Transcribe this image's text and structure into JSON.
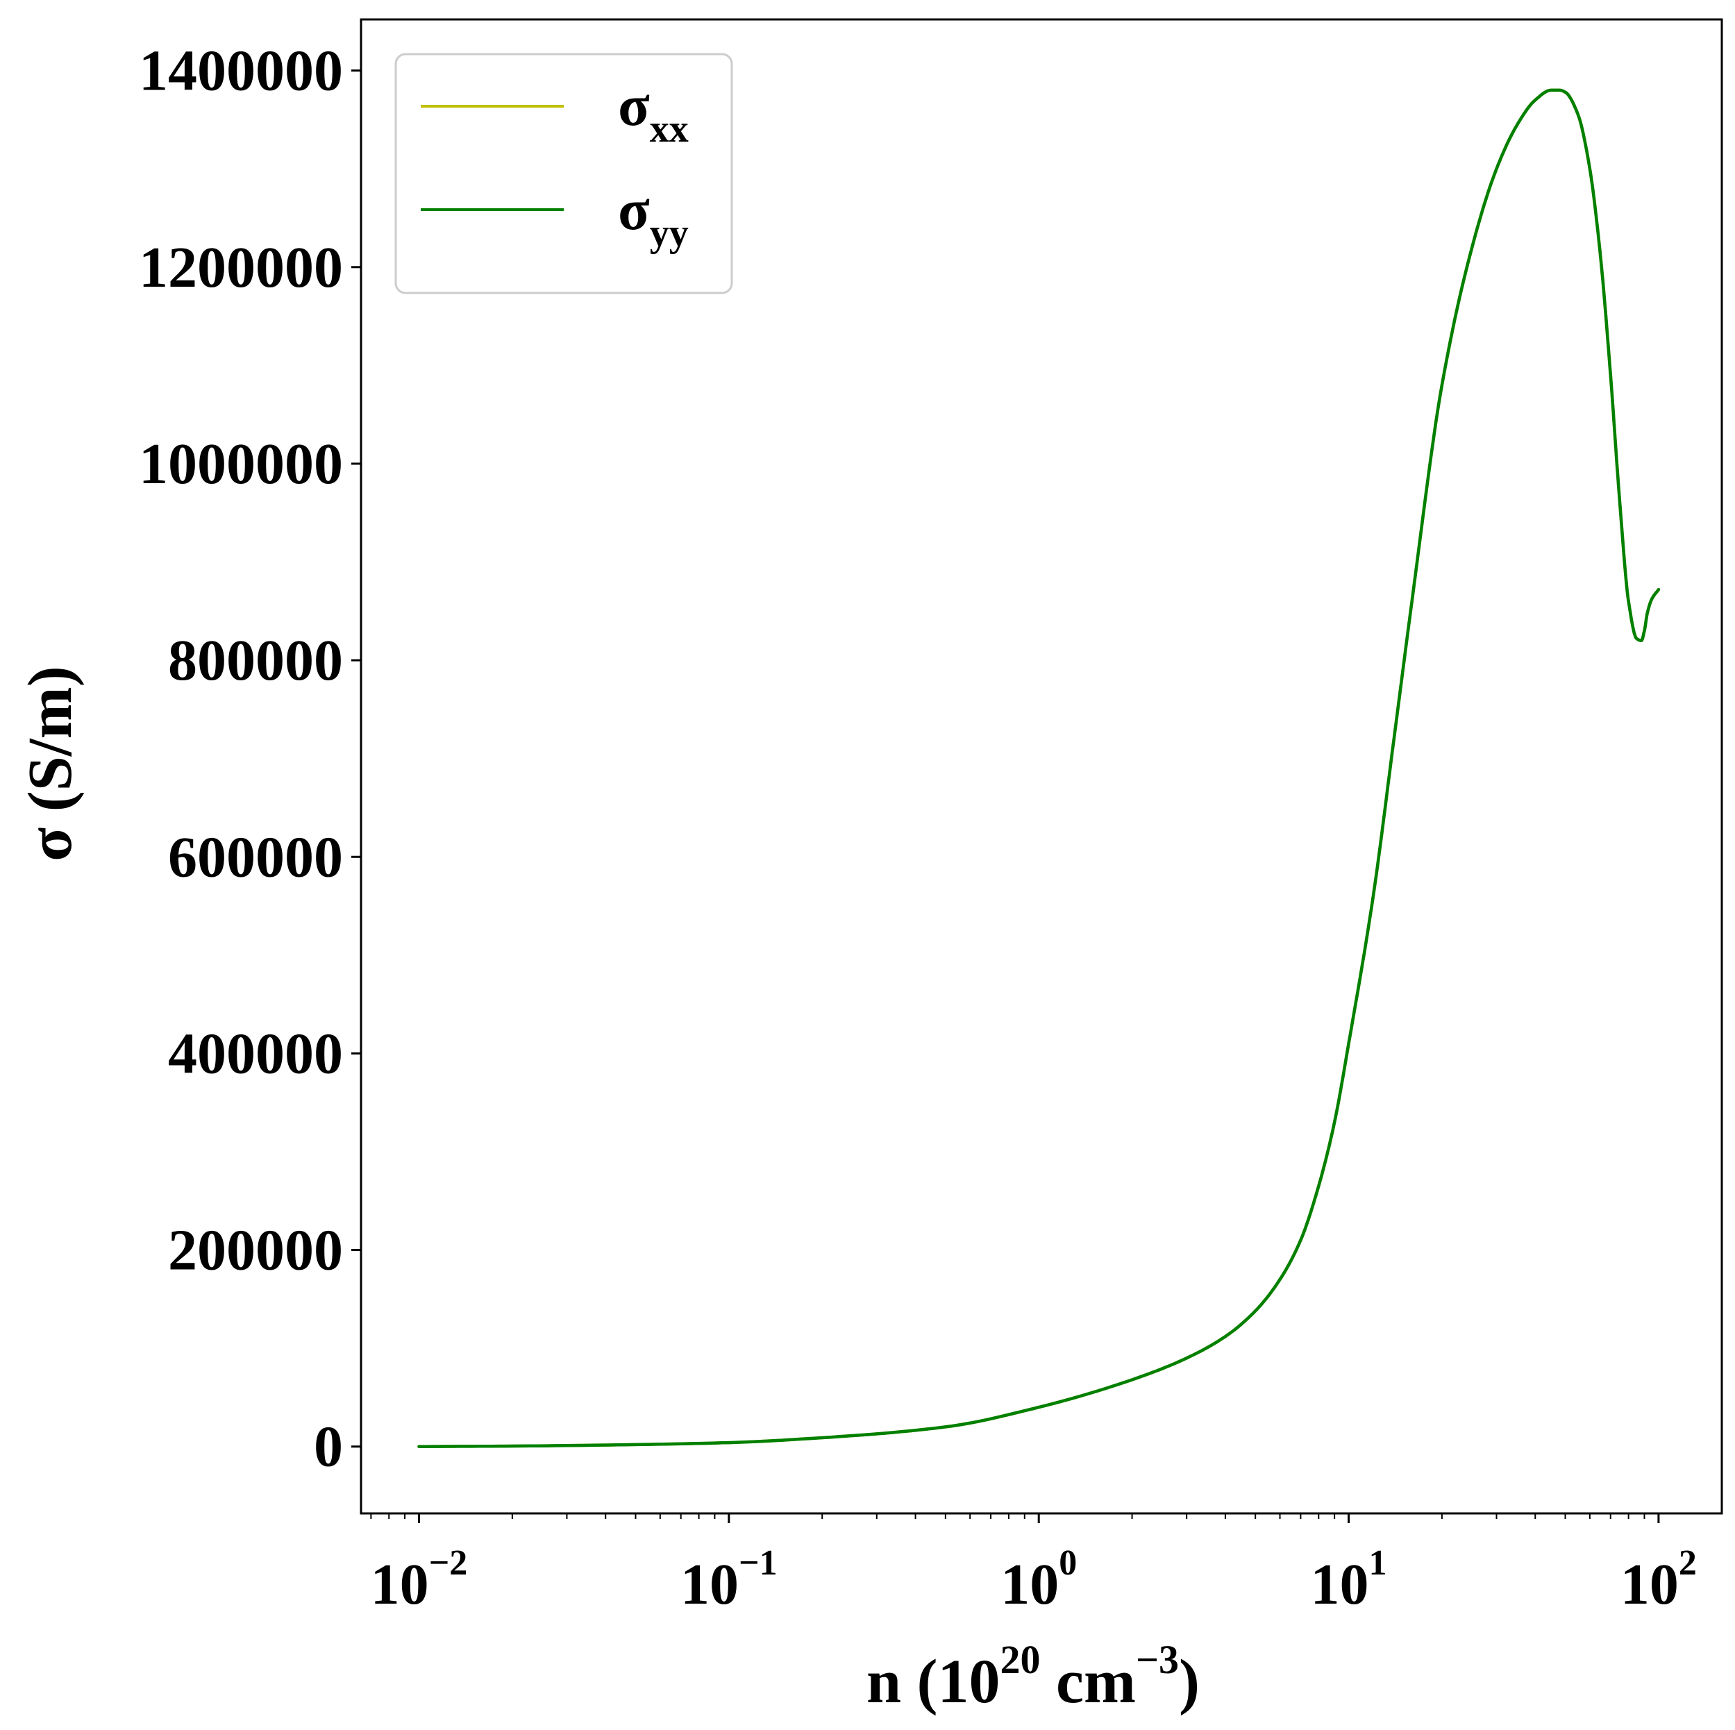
{
  "chart_data": {
    "type": "line",
    "xlabel": {
      "base": "n (10",
      "sup1": "20",
      "mid": " cm",
      "sup2": "−3",
      "end": ")"
    },
    "ylabel": "σ (S/m)",
    "xscale": "log",
    "xlim": [
      0.0065,
      160
    ],
    "ylim": [
      -68000,
      1452000
    ],
    "x_ticks": [
      {
        "base": "10",
        "exp": "−2",
        "value": 0.01
      },
      {
        "base": "10",
        "exp": "−1",
        "value": 0.1
      },
      {
        "base": "10",
        "exp": "0",
        "value": 1
      },
      {
        "base": "10",
        "exp": "1",
        "value": 10
      },
      {
        "base": "10",
        "exp": "2",
        "value": 100
      }
    ],
    "y_ticks": [
      {
        "label": "0",
        "value": 0
      },
      {
        "label": "200000",
        "value": 200000
      },
      {
        "label": "400000",
        "value": 400000
      },
      {
        "label": "600000",
        "value": 600000
      },
      {
        "label": "800000",
        "value": 800000
      },
      {
        "label": "1000000",
        "value": 1000000
      },
      {
        "label": "1200000",
        "value": 1200000
      },
      {
        "label": "1400000",
        "value": 1400000
      }
    ],
    "grid": false,
    "legend_position": "top-left",
    "series": [
      {
        "name": "σ",
        "sub": "xx",
        "color": "#bfbf00",
        "x": [
          0.01,
          0.02,
          0.05,
          0.1,
          0.2,
          0.5,
          1,
          2,
          3,
          4,
          5,
          6,
          7,
          8,
          9,
          10,
          12,
          14,
          16,
          20,
          25,
          30,
          35,
          40,
          45,
          48,
          50,
          55,
          60,
          65,
          70,
          75,
          80,
          85,
          88,
          90,
          92,
          95,
          100
        ],
        "y": [
          0,
          500,
          2000,
          4000,
          9000,
          20000,
          40000,
          68000,
          90000,
          112000,
          138000,
          170000,
          210000,
          265000,
          330000,
          410000,
          560000,
          720000,
          860000,
          1080000,
          1220000,
          1300000,
          1345000,
          1370000,
          1380000,
          1380000,
          1378000,
          1355000,
          1300000,
          1210000,
          1090000,
          960000,
          860000,
          822000,
          820000,
          830000,
          848000,
          862000,
          872000
        ]
      },
      {
        "name": "σ",
        "sub": "yy",
        "color": "#008000",
        "x": [
          0.01,
          0.02,
          0.05,
          0.1,
          0.2,
          0.5,
          1,
          2,
          3,
          4,
          5,
          6,
          7,
          8,
          9,
          10,
          12,
          14,
          16,
          20,
          25,
          30,
          35,
          40,
          45,
          48,
          50,
          55,
          60,
          65,
          70,
          75,
          80,
          85,
          88,
          90,
          92,
          95,
          100
        ],
        "y": [
          0,
          500,
          2000,
          4000,
          9000,
          20000,
          40000,
          68000,
          90000,
          112000,
          138000,
          170000,
          210000,
          265000,
          330000,
          410000,
          560000,
          720000,
          860000,
          1080000,
          1220000,
          1300000,
          1345000,
          1370000,
          1380000,
          1380000,
          1378000,
          1355000,
          1300000,
          1210000,
          1090000,
          960000,
          860000,
          822000,
          820000,
          830000,
          848000,
          862000,
          872000
        ]
      }
    ]
  }
}
